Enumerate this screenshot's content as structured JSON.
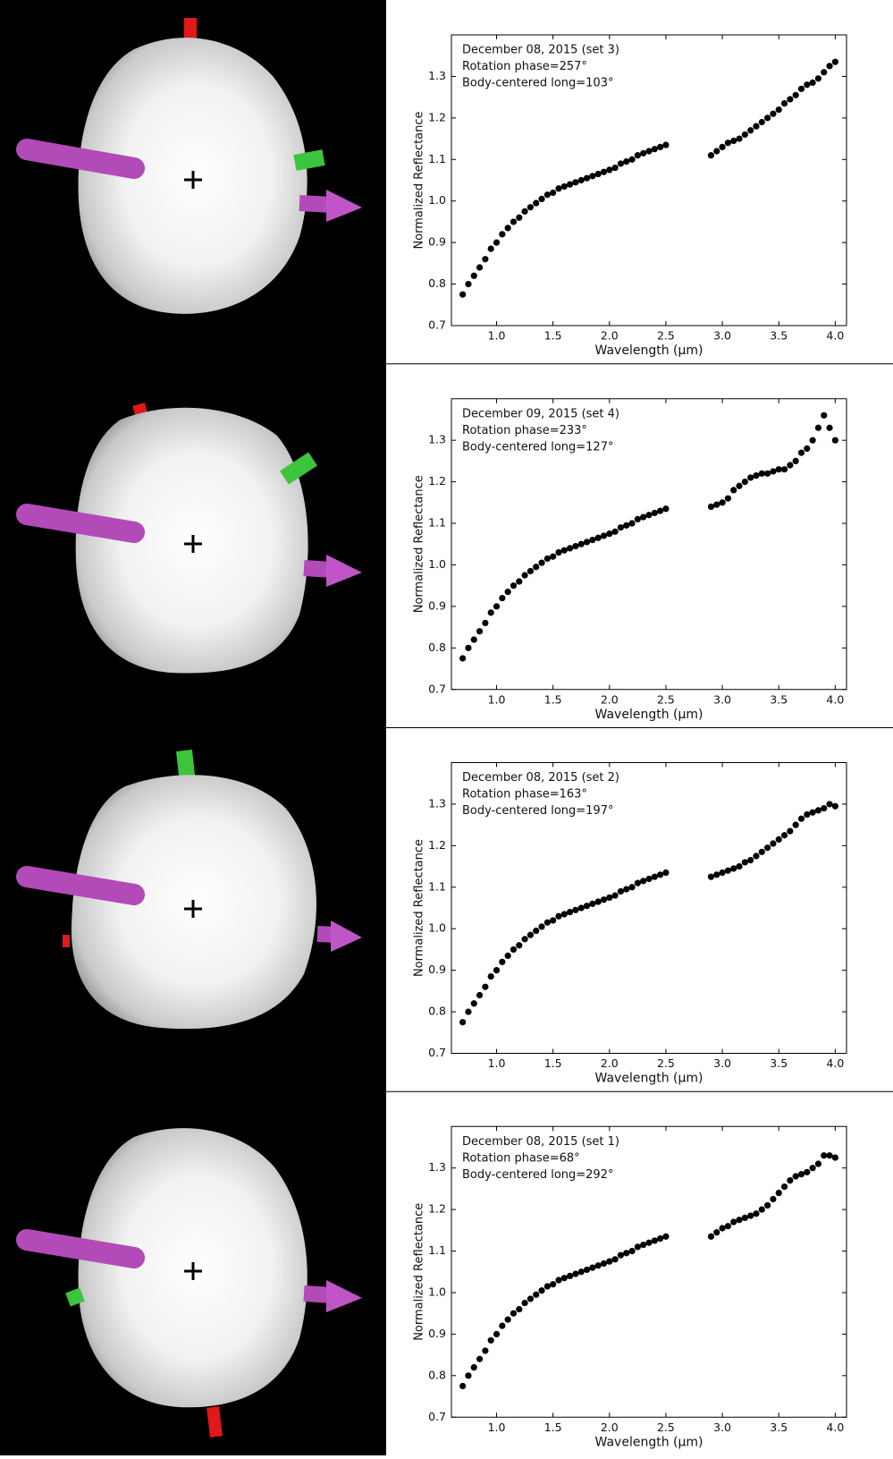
{
  "chart_data": [
    {
      "type": "scatter",
      "annotations": [
        "December 08, 2015 (set 3)",
        "Rotation phase=257°",
        "Body-centered long=103°"
      ],
      "xlabel": "Wavelength (μm)",
      "ylabel": "Normalized Reflectance",
      "color": "#000000",
      "xlim": [
        0.6,
        4.1
      ],
      "ylim": [
        0.7,
        1.4
      ],
      "xticks": [
        {
          "value": 1,
          "label": "1.0"
        },
        1.5,
        {
          "value": 2,
          "label": "2.0"
        },
        2.5,
        {
          "value": 3,
          "label": "3.0"
        },
        3.5,
        {
          "value": 4,
          "label": "4.0"
        }
      ],
      "yticks": [
        0.7,
        0.8,
        0.9,
        {
          "value": 1,
          "label": "1.0"
        },
        1.1,
        1.2,
        1.3
      ],
      "x": [
        0.7,
        0.75,
        0.8,
        0.85,
        0.9,
        0.95,
        1.0,
        1.05,
        1.1,
        1.15,
        1.2,
        1.25,
        1.3,
        1.35,
        1.4,
        1.45,
        1.5,
        1.55,
        1.6,
        1.65,
        1.7,
        1.75,
        1.8,
        1.85,
        1.9,
        1.95,
        2.0,
        2.05,
        2.1,
        2.15,
        2.2,
        2.25,
        2.3,
        2.35,
        2.4,
        2.45,
        2.5,
        2.9,
        2.95,
        3.0,
        3.05,
        3.1,
        3.15,
        3.2,
        3.25,
        3.3,
        3.35,
        3.4,
        3.45,
        3.5,
        3.55,
        3.6,
        3.65,
        3.7,
        3.75,
        3.8,
        3.85,
        3.9,
        3.95,
        4.0
      ],
      "values": [
        0.775,
        0.8,
        0.82,
        0.84,
        0.86,
        0.885,
        0.9,
        0.92,
        0.935,
        0.95,
        0.96,
        0.975,
        0.985,
        0.995,
        1.005,
        1.015,
        1.02,
        1.03,
        1.035,
        1.04,
        1.045,
        1.05,
        1.055,
        1.06,
        1.065,
        1.07,
        1.075,
        1.08,
        1.09,
        1.095,
        1.1,
        1.11,
        1.115,
        1.12,
        1.125,
        1.13,
        1.135,
        1.11,
        1.12,
        1.13,
        1.14,
        1.145,
        1.15,
        1.16,
        1.17,
        1.18,
        1.19,
        1.2,
        1.21,
        1.22,
        1.235,
        1.245,
        1.255,
        1.27,
        1.28,
        1.285,
        1.295,
        1.31,
        1.325,
        1.335
      ]
    },
    {
      "type": "scatter",
      "annotations": [
        "December 09, 2015 (set 4)",
        "Rotation phase=233°",
        "Body-centered long=127°"
      ],
      "xlabel": "Wavelength (μm)",
      "ylabel": "Normalized Reflectance",
      "color": "#000000",
      "xlim": [
        0.6,
        4.1
      ],
      "ylim": [
        0.7,
        1.4
      ],
      "xticks": [
        {
          "value": 1,
          "label": "1.0"
        },
        1.5,
        {
          "value": 2,
          "label": "2.0"
        },
        2.5,
        {
          "value": 3,
          "label": "3.0"
        },
        3.5,
        {
          "value": 4,
          "label": "4.0"
        }
      ],
      "yticks": [
        0.7,
        0.8,
        0.9,
        {
          "value": 1,
          "label": "1.0"
        },
        1.1,
        1.2,
        1.3
      ],
      "x": [
        0.7,
        0.75,
        0.8,
        0.85,
        0.9,
        0.95,
        1.0,
        1.05,
        1.1,
        1.15,
        1.2,
        1.25,
        1.3,
        1.35,
        1.4,
        1.45,
        1.5,
        1.55,
        1.6,
        1.65,
        1.7,
        1.75,
        1.8,
        1.85,
        1.9,
        1.95,
        2.0,
        2.05,
        2.1,
        2.15,
        2.2,
        2.25,
        2.3,
        2.35,
        2.4,
        2.45,
        2.5,
        2.9,
        2.95,
        3.0,
        3.05,
        3.1,
        3.15,
        3.2,
        3.25,
        3.3,
        3.35,
        3.4,
        3.45,
        3.5,
        3.55,
        3.6,
        3.65,
        3.7,
        3.75,
        3.8,
        3.85,
        3.9,
        3.95,
        4.0
      ],
      "values": [
        0.775,
        0.8,
        0.82,
        0.84,
        0.86,
        0.885,
        0.9,
        0.92,
        0.935,
        0.95,
        0.96,
        0.975,
        0.985,
        0.995,
        1.005,
        1.015,
        1.02,
        1.03,
        1.035,
        1.04,
        1.045,
        1.05,
        1.055,
        1.06,
        1.065,
        1.07,
        1.075,
        1.08,
        1.09,
        1.095,
        1.1,
        1.11,
        1.115,
        1.12,
        1.125,
        1.13,
        1.135,
        1.14,
        1.145,
        1.15,
        1.16,
        1.18,
        1.19,
        1.2,
        1.21,
        1.215,
        1.22,
        1.22,
        1.225,
        1.23,
        1.23,
        1.24,
        1.25,
        1.27,
        1.28,
        1.3,
        1.33,
        1.36,
        1.33,
        1.3
      ]
    },
    {
      "type": "scatter",
      "annotations": [
        "December 08, 2015 (set 2)",
        "Rotation phase=163°",
        "Body-centered long=197°"
      ],
      "xlabel": "Wavelength (μm)",
      "ylabel": "Normalized Reflectance",
      "color": "#000000",
      "xlim": [
        0.6,
        4.1
      ],
      "ylim": [
        0.7,
        1.4
      ],
      "xticks": [
        {
          "value": 1,
          "label": "1.0"
        },
        1.5,
        {
          "value": 2,
          "label": "2.0"
        },
        2.5,
        {
          "value": 3,
          "label": "3.0"
        },
        3.5,
        {
          "value": 4,
          "label": "4.0"
        }
      ],
      "yticks": [
        0.7,
        0.8,
        0.9,
        {
          "value": 1,
          "label": "1.0"
        },
        1.1,
        1.2,
        1.3
      ],
      "x": [
        0.7,
        0.75,
        0.8,
        0.85,
        0.9,
        0.95,
        1.0,
        1.05,
        1.1,
        1.15,
        1.2,
        1.25,
        1.3,
        1.35,
        1.4,
        1.45,
        1.5,
        1.55,
        1.6,
        1.65,
        1.7,
        1.75,
        1.8,
        1.85,
        1.9,
        1.95,
        2.0,
        2.05,
        2.1,
        2.15,
        2.2,
        2.25,
        2.3,
        2.35,
        2.4,
        2.45,
        2.5,
        2.9,
        2.95,
        3.0,
        3.05,
        3.1,
        3.15,
        3.2,
        3.25,
        3.3,
        3.35,
        3.4,
        3.45,
        3.5,
        3.55,
        3.6,
        3.65,
        3.7,
        3.75,
        3.8,
        3.85,
        3.9,
        3.95,
        4.0
      ],
      "values": [
        0.775,
        0.8,
        0.82,
        0.84,
        0.86,
        0.885,
        0.9,
        0.92,
        0.935,
        0.95,
        0.96,
        0.975,
        0.985,
        0.995,
        1.005,
        1.015,
        1.02,
        1.03,
        1.035,
        1.04,
        1.045,
        1.05,
        1.055,
        1.06,
        1.065,
        1.07,
        1.075,
        1.08,
        1.09,
        1.095,
        1.1,
        1.11,
        1.115,
        1.12,
        1.125,
        1.13,
        1.135,
        1.125,
        1.13,
        1.135,
        1.14,
        1.145,
        1.15,
        1.16,
        1.165,
        1.175,
        1.185,
        1.195,
        1.205,
        1.215,
        1.225,
        1.235,
        1.25,
        1.265,
        1.275,
        1.28,
        1.285,
        1.29,
        1.3,
        1.295
      ]
    },
    {
      "type": "scatter",
      "annotations": [
        "December 08, 2015 (set 1)",
        "Rotation phase=68°",
        "Body-centered long=292°"
      ],
      "xlabel": "Wavelength (μm)",
      "ylabel": "Normalized Reflectance",
      "color": "#000000",
      "xlim": [
        0.6,
        4.1
      ],
      "ylim": [
        0.7,
        1.4
      ],
      "xticks": [
        {
          "value": 1,
          "label": "1.0"
        },
        1.5,
        {
          "value": 2,
          "label": "2.0"
        },
        2.5,
        {
          "value": 3,
          "label": "3.0"
        },
        3.5,
        {
          "value": 4,
          "label": "4.0"
        }
      ],
      "yticks": [
        0.7,
        0.8,
        0.9,
        {
          "value": 1,
          "label": "1.0"
        },
        1.1,
        1.2,
        1.3
      ],
      "x": [
        0.7,
        0.75,
        0.8,
        0.85,
        0.9,
        0.95,
        1.0,
        1.05,
        1.1,
        1.15,
        1.2,
        1.25,
        1.3,
        1.35,
        1.4,
        1.45,
        1.5,
        1.55,
        1.6,
        1.65,
        1.7,
        1.75,
        1.8,
        1.85,
        1.9,
        1.95,
        2.0,
        2.05,
        2.1,
        2.15,
        2.2,
        2.25,
        2.3,
        2.35,
        2.4,
        2.45,
        2.5,
        2.9,
        2.95,
        3.0,
        3.05,
        3.1,
        3.15,
        3.2,
        3.25,
        3.3,
        3.35,
        3.4,
        3.45,
        3.5,
        3.55,
        3.6,
        3.65,
        3.7,
        3.75,
        3.8,
        3.85,
        3.9,
        3.95,
        4.0
      ],
      "values": [
        0.775,
        0.8,
        0.82,
        0.84,
        0.86,
        0.885,
        0.9,
        0.92,
        0.935,
        0.95,
        0.96,
        0.975,
        0.985,
        0.995,
        1.005,
        1.015,
        1.02,
        1.03,
        1.035,
        1.04,
        1.045,
        1.05,
        1.055,
        1.06,
        1.065,
        1.07,
        1.075,
        1.08,
        1.09,
        1.095,
        1.1,
        1.11,
        1.115,
        1.12,
        1.125,
        1.13,
        1.135,
        1.135,
        1.145,
        1.155,
        1.16,
        1.17,
        1.175,
        1.18,
        1.185,
        1.19,
        1.2,
        1.21,
        1.225,
        1.24,
        1.255,
        1.27,
        1.28,
        1.285,
        1.29,
        1.3,
        1.31,
        1.33,
        1.33,
        1.325
      ]
    }
  ]
}
